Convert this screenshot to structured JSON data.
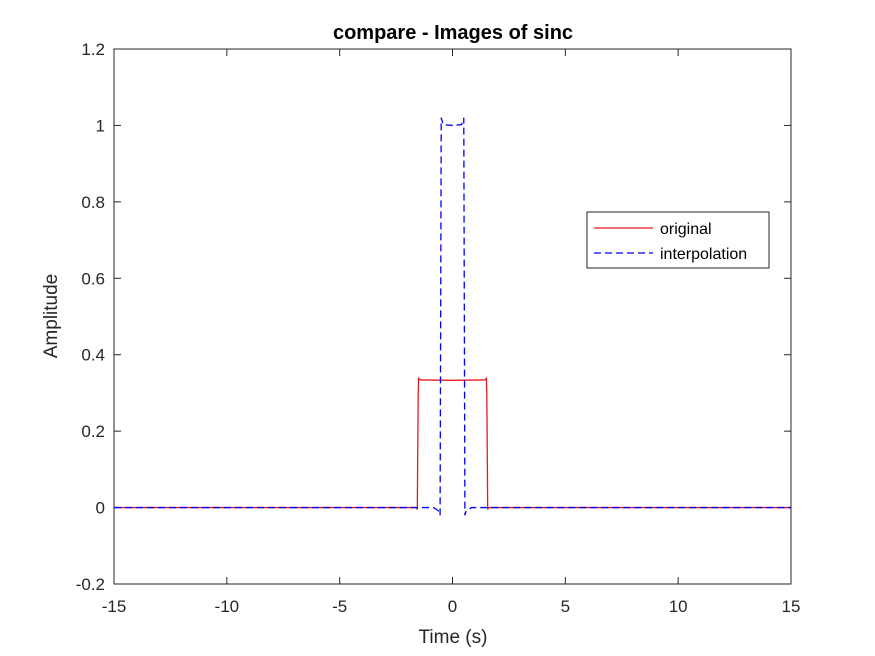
{
  "chart_data": {
    "type": "line",
    "title": "compare - Images of sinc",
    "xlabel": "Time (s)",
    "ylabel": "Amplitude",
    "xlim": [
      -15,
      15
    ],
    "ylim": [
      -0.2,
      1.2
    ],
    "xticks": [
      -15,
      -10,
      -5,
      0,
      5,
      10,
      15
    ],
    "xtick_labels": [
      "-15",
      "-10",
      "-5",
      "0",
      "5",
      "10",
      "15"
    ],
    "yticks": [
      -0.2,
      0,
      0.2,
      0.4,
      0.6,
      0.8,
      1,
      1.2
    ],
    "ytick_labels": [
      "-0.2",
      "0",
      "0.2",
      "0.4",
      "0.6",
      "0.8",
      "1",
      "1.2"
    ],
    "grid": false,
    "legend_position": "top-right",
    "series": [
      {
        "name": "original",
        "color": "#e41a1c",
        "style": "solid",
        "x": [
          -15,
          -1.6,
          -1.56,
          -1.52,
          -1.5,
          -1.45,
          -1.4,
          0,
          1.4,
          1.45,
          1.5,
          1.52,
          1.56,
          1.6,
          15
        ],
        "y": [
          0,
          0,
          -0.005,
          0.3,
          0.338,
          0.335,
          0.334,
          0.333,
          0.334,
          0.335,
          0.338,
          0.3,
          -0.005,
          0,
          0
        ]
      },
      {
        "name": "interpolation",
        "color": "#0000ff",
        "style": "dashed",
        "x": [
          -15,
          -0.85,
          -0.7,
          -0.6,
          -0.55,
          -0.52,
          -0.5,
          -0.45,
          -0.4,
          0,
          0.4,
          0.45,
          0.5,
          0.52,
          0.55,
          0.6,
          0.7,
          0.85,
          15
        ],
        "y": [
          0,
          0,
          -0.005,
          -0.01,
          -0.02,
          0.6,
          1.02,
          1.01,
          1.002,
          1.0,
          1.002,
          1.01,
          1.02,
          0.6,
          -0.02,
          -0.01,
          -0.005,
          0,
          0
        ]
      }
    ]
  }
}
